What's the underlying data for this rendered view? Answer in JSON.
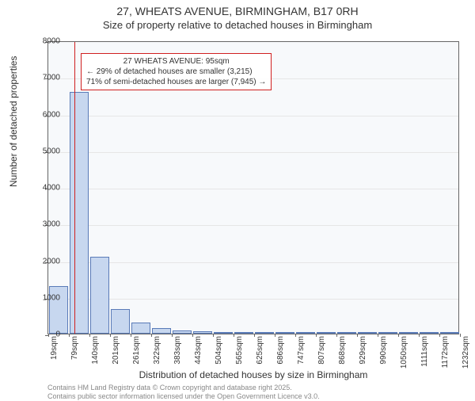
{
  "title": {
    "main": "27, WHEATS AVENUE, BIRMINGHAM, B17 0RH",
    "sub": "Size of property relative to detached houses in Birmingham"
  },
  "chart": {
    "type": "histogram",
    "background_color": "#f7f9fb",
    "border_color": "#666666",
    "grid_color": "#e6e6e6",
    "bar_fill": "#c7d7ef",
    "bar_border": "#5a7bb8",
    "marker_color": "#d02020",
    "xlabel": "Distribution of detached houses by size in Birmingham",
    "ylabel": "Number of detached properties",
    "ylim": [
      0,
      8000
    ],
    "y_ticks": [
      0,
      1000,
      2000,
      3000,
      4000,
      5000,
      6000,
      7000,
      8000
    ],
    "x_tick_labels": [
      "19sqm",
      "79sqm",
      "140sqm",
      "201sqm",
      "261sqm",
      "322sqm",
      "383sqm",
      "443sqm",
      "504sqm",
      "565sqm",
      "625sqm",
      "686sqm",
      "747sqm",
      "807sqm",
      "868sqm",
      "929sqm",
      "990sqm",
      "1050sqm",
      "1111sqm",
      "1172sqm",
      "1232sqm"
    ],
    "bars": [
      1300,
      6600,
      2100,
      680,
      300,
      150,
      90,
      60,
      40,
      25,
      15,
      10,
      7,
      5,
      3,
      2,
      2,
      1,
      1,
      1
    ],
    "marker_bin_index": 1,
    "marker_fraction_in_bin": 0.27,
    "annotation": {
      "line1": "27 WHEATS AVENUE: 95sqm",
      "line2": "← 29% of detached houses are smaller (3,215)",
      "line3": "71% of semi-detached houses are larger (7,945) →"
    },
    "label_fontsize": 12,
    "tick_fontsize": 10,
    "annot_fontsize": 10,
    "title_fontsize_main": 14,
    "title_fontsize_sub": 13
  },
  "attribution": {
    "line1": "Contains HM Land Registry data © Crown copyright and database right 2025.",
    "line2": "Contains public sector information licensed under the Open Government Licence v3.0."
  }
}
